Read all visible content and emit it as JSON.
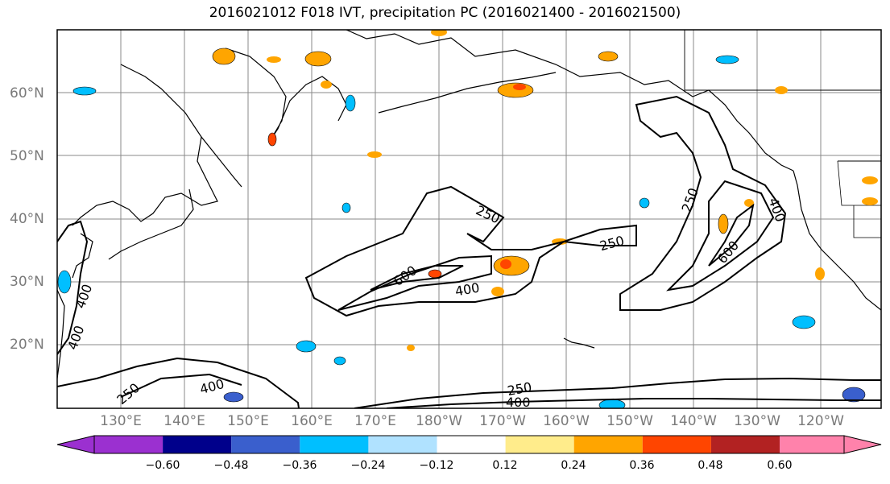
{
  "title": "2016021012 F018 IVT, precipitation PC (2016021400 - 2016021500)",
  "lat_labels": [
    "60°N",
    "50°N",
    "40°N",
    "30°N",
    "20°N"
  ],
  "lon_labels": [
    "130°E",
    "140°E",
    "150°E",
    "160°E",
    "170°E",
    "180°W",
    "170°W",
    "160°W",
    "150°W",
    "140°W",
    "130°W",
    "120°W"
  ],
  "contour_labels": [
    "250",
    "250",
    "250",
    "400",
    "400",
    "400",
    "400",
    "400",
    "600",
    "600",
    "250",
    "250",
    "400"
  ],
  "colorbar": {
    "ticks": [
      "−0.60",
      "−0.48",
      "−0.36",
      "−0.24",
      "−0.12",
      "0.12",
      "0.24",
      "0.36",
      "0.48",
      "0.60"
    ],
    "colors": [
      "#9b30d0",
      "#00008b",
      "#3a5fcd",
      "#00bfff",
      "#b0e2ff",
      "#ffffff",
      "#ffec8b",
      "#ffa500",
      "#ff4500",
      "#b22222",
      "#ff82ab"
    ]
  },
  "colors": {
    "frame": "#000000",
    "grid": "#888888",
    "contour": "#000000",
    "coast": "#000000"
  }
}
